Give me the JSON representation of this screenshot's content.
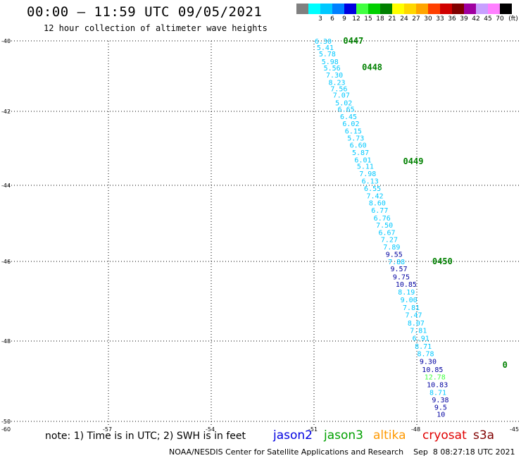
{
  "header": {
    "title": "00:00 – 11:59 UTC 09/05/2021",
    "subtitle": "12 hour collection of altimeter wave heights"
  },
  "colorbar": {
    "unit": "(ft)",
    "swatches": [
      {
        "color": "#808080",
        "label": ""
      },
      {
        "color": "#00ffff",
        "label": "3"
      },
      {
        "color": "#00c8ff",
        "label": "6"
      },
      {
        "color": "#0080ff",
        "label": "9"
      },
      {
        "color": "#0000e0",
        "label": "12"
      },
      {
        "color": "#40ff40",
        "label": "15"
      },
      {
        "color": "#00d000",
        "label": "18"
      },
      {
        "color": "#008000",
        "label": "21"
      },
      {
        "color": "#ffff00",
        "label": "24"
      },
      {
        "color": "#ffd700",
        "label": "27"
      },
      {
        "color": "#ffa500",
        "label": "30"
      },
      {
        "color": "#ff4000",
        "label": "33"
      },
      {
        "color": "#d00000",
        "label": "36"
      },
      {
        "color": "#800000",
        "label": "39"
      },
      {
        "color": "#a000a0",
        "label": "42"
      },
      {
        "color": "#c8a0ff",
        "label": "45"
      },
      {
        "color": "#ff80ff",
        "label": "70"
      },
      {
        "color": "#000000",
        "label": ""
      }
    ]
  },
  "map": {
    "lat_labels": [
      "-40",
      "-42",
      "-44",
      "-46",
      "-48",
      "-50"
    ],
    "lon_labels": [
      "-60",
      "-57",
      "-54",
      "-51",
      "-48",
      "-45"
    ],
    "lat_range": [
      -50,
      -40
    ],
    "lon_range": [
      -60,
      -45
    ],
    "grid": "dotted",
    "time_labels": [
      {
        "text": "0447",
        "lat": -40.0,
        "lon": -50.15
      },
      {
        "text": "0448",
        "lat": -40.75,
        "lon": -49.6
      },
      {
        "text": "0449",
        "lat": -43.35,
        "lon": -48.4
      },
      {
        "text": "0450",
        "lat": -46.0,
        "lon": -47.55
      },
      {
        "text": "0",
        "lat": -48.6,
        "lon": -45.5
      }
    ],
    "track": [
      {
        "v": "6.30",
        "lat": -40.0,
        "lon": -50.98,
        "c": "#00c8ff"
      },
      {
        "v": "5.41",
        "lat": -40.18,
        "lon": -50.92,
        "c": "#00c8ff"
      },
      {
        "v": "5.78",
        "lat": -40.36,
        "lon": -50.86,
        "c": "#00c8ff"
      },
      {
        "v": "5.98",
        "lat": -40.58,
        "lon": -50.78,
        "c": "#00c8ff"
      },
      {
        "v": "5.56",
        "lat": -40.76,
        "lon": -50.72,
        "c": "#00c8ff"
      },
      {
        "v": "7.30",
        "lat": -40.96,
        "lon": -50.65,
        "c": "#00c8ff"
      },
      {
        "v": "8.23",
        "lat": -41.17,
        "lon": -50.58,
        "c": "#00c8ff"
      },
      {
        "v": "7.56",
        "lat": -41.35,
        "lon": -50.52,
        "c": "#00c8ff"
      },
      {
        "v": "7.07",
        "lat": -41.53,
        "lon": -50.45,
        "c": "#00c8ff"
      },
      {
        "v": "5.02",
        "lat": -41.75,
        "lon": -50.38,
        "c": "#00c8ff"
      },
      {
        "v": "6.65",
        "lat": -41.93,
        "lon": -50.31,
        "c": "#00c8ff"
      },
      {
        "v": "6.45",
        "lat": -42.13,
        "lon": -50.24,
        "c": "#00c8ff"
      },
      {
        "v": "6.02",
        "lat": -42.32,
        "lon": -50.17,
        "c": "#00c8ff"
      },
      {
        "v": "6.15",
        "lat": -42.52,
        "lon": -50.1,
        "c": "#00c8ff"
      },
      {
        "v": "5.73",
        "lat": -42.71,
        "lon": -50.03,
        "c": "#00c8ff"
      },
      {
        "v": "6.60",
        "lat": -42.9,
        "lon": -49.96,
        "c": "#00c8ff"
      },
      {
        "v": "5.87",
        "lat": -43.1,
        "lon": -49.89,
        "c": "#00c8ff"
      },
      {
        "v": "6.01",
        "lat": -43.3,
        "lon": -49.82,
        "c": "#00c8ff"
      },
      {
        "v": "5.11",
        "lat": -43.48,
        "lon": -49.75,
        "c": "#00c8ff"
      },
      {
        "v": "7.98",
        "lat": -43.68,
        "lon": -49.68,
        "c": "#00c8ff"
      },
      {
        "v": "6.13",
        "lat": -43.88,
        "lon": -49.61,
        "c": "#00c8ff"
      },
      {
        "v": "6.55",
        "lat": -44.07,
        "lon": -49.54,
        "c": "#00c8ff"
      },
      {
        "v": "7.42",
        "lat": -44.27,
        "lon": -49.47,
        "c": "#00c8ff"
      },
      {
        "v": "8.60",
        "lat": -44.45,
        "lon": -49.4,
        "c": "#00c8ff"
      },
      {
        "v": "6.77",
        "lat": -44.65,
        "lon": -49.33,
        "c": "#00c8ff"
      },
      {
        "v": "6.76",
        "lat": -44.85,
        "lon": -49.26,
        "c": "#00c8ff"
      },
      {
        "v": "7.50",
        "lat": -45.04,
        "lon": -49.19,
        "c": "#00c8ff"
      },
      {
        "v": "6.67",
        "lat": -45.23,
        "lon": -49.12,
        "c": "#00c8ff"
      },
      {
        "v": "7.27",
        "lat": -45.42,
        "lon": -49.05,
        "c": "#00c8ff"
      },
      {
        "v": "7.89",
        "lat": -45.61,
        "lon": -48.98,
        "c": "#00c8ff"
      },
      {
        "v": "9.55",
        "lat": -45.81,
        "lon": -48.91,
        "c": "#0000a0"
      },
      {
        "v": "7.88",
        "lat": -46.0,
        "lon": -48.84,
        "c": "#00c8ff"
      },
      {
        "v": "9.57",
        "lat": -46.18,
        "lon": -48.77,
        "c": "#0000a0"
      },
      {
        "v": "9.75",
        "lat": -46.38,
        "lon": -48.7,
        "c": "#0000a0"
      },
      {
        "v": "10.85",
        "lat": -46.57,
        "lon": -48.62,
        "c": "#0000a0"
      },
      {
        "v": "8.19",
        "lat": -46.76,
        "lon": -48.55,
        "c": "#00c8ff"
      },
      {
        "v": "9.00",
        "lat": -46.96,
        "lon": -48.48,
        "c": "#00c8ff"
      },
      {
        "v": "7.81",
        "lat": -47.15,
        "lon": -48.41,
        "c": "#00c8ff"
      },
      {
        "v": "7.47",
        "lat": -47.34,
        "lon": -48.34,
        "c": "#00c8ff"
      },
      {
        "v": "8.07",
        "lat": -47.54,
        "lon": -48.27,
        "c": "#00c8ff"
      },
      {
        "v": "7.81",
        "lat": -47.73,
        "lon": -48.2,
        "c": "#00c8ff"
      },
      {
        "v": "6.91",
        "lat": -47.92,
        "lon": -48.13,
        "c": "#00c8ff"
      },
      {
        "v": "8.71",
        "lat": -48.12,
        "lon": -48.06,
        "c": "#00c8ff"
      },
      {
        "v": "8.78",
        "lat": -48.31,
        "lon": -47.99,
        "c": "#00c8ff"
      },
      {
        "v": "9.30",
        "lat": -48.5,
        "lon": -47.92,
        "c": "#0000a0"
      },
      {
        "v": "10.85",
        "lat": -48.7,
        "lon": -47.85,
        "c": "#0000a0"
      },
      {
        "v": "12.78",
        "lat": -48.89,
        "lon": -47.78,
        "c": "#40ff40"
      },
      {
        "v": "10.83",
        "lat": -49.08,
        "lon": -47.71,
        "c": "#0000a0"
      },
      {
        "v": "8.71",
        "lat": -49.27,
        "lon": -47.63,
        "c": "#00c8ff"
      },
      {
        "v": "9.38",
        "lat": -49.46,
        "lon": -47.56,
        "c": "#0000a0"
      },
      {
        "v": "9.5",
        "lat": -49.64,
        "lon": -47.49,
        "c": "#0000a0"
      },
      {
        "v": "10",
        "lat": -49.82,
        "lon": -47.42,
        "c": "#0000a0"
      }
    ]
  },
  "legend": {
    "note": "note: 1) Time is in UTC; 2) SWH is in feet",
    "satellites": [
      {
        "name": "jason2",
        "color": "#0000e0"
      },
      {
        "name": "jason3",
        "color": "#00a000"
      },
      {
        "name": "altika",
        "color": "#ff9900"
      },
      {
        "name": "cryosat",
        "color": "#e00000"
      },
      {
        "name": "s3a",
        "color": "#800000"
      }
    ]
  },
  "footer": {
    "credit": "NOAA/NESDIS Center for Satellite Applications and Research",
    "timestamp": "Sep  8 08:27:18 UTC 2021"
  }
}
